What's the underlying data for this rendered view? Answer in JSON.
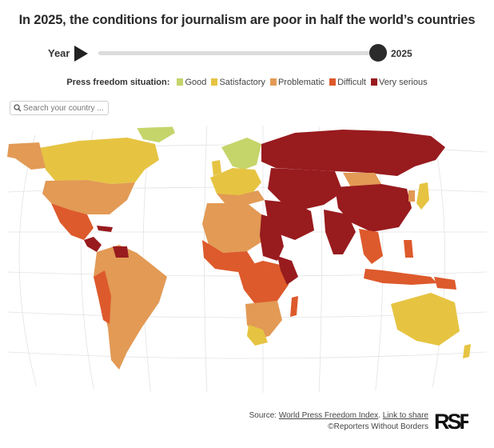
{
  "title": "In 2025, the conditions for journalism are poor in half the world’s countries",
  "timeline": {
    "label": "Year",
    "current_year": "2025",
    "progress": 1.0
  },
  "legend": {
    "lead": "Press freedom situation:",
    "items": [
      {
        "label": "Good",
        "color": "#c5d56a"
      },
      {
        "label": "Satisfactory",
        "color": "#e6c442"
      },
      {
        "label": "Problematic",
        "color": "#e29a55"
      },
      {
        "label": "Difficult",
        "color": "#dd5a2c"
      },
      {
        "label": "Very serious",
        "color": "#981b1e"
      }
    ]
  },
  "search": {
    "placeholder": "Search your country ..."
  },
  "footer": {
    "source_prefix": "Source:",
    "source_link": "World Press Freedom Index",
    "separator": ".",
    "share_link": "Link to share",
    "credit": "©Reporters Without Borders"
  },
  "logo": {
    "text": "RSF",
    "color": "#111111"
  }
}
